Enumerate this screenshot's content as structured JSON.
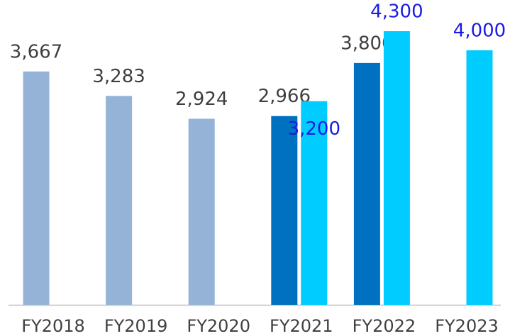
{
  "chart_data": {
    "type": "bar",
    "categories": [
      "FY2018",
      "FY2019",
      "FY2020",
      "FY2021",
      "FY2022",
      "FY2023"
    ],
    "series": [
      {
        "color": "#95b3d7",
        "label_color": "#404040",
        "values": [
          3667,
          3283,
          2924,
          null,
          null,
          null
        ],
        "value_labels": [
          "3,667",
          "3,283",
          "2,924",
          null,
          null,
          null
        ]
      },
      {
        "color": "#0070c0",
        "label_color": "#404040",
        "values": [
          null,
          null,
          null,
          2966,
          3800,
          null
        ],
        "value_labels": [
          null,
          null,
          null,
          "2,966",
          "3,800",
          null
        ]
      },
      {
        "color": "#00ccff",
        "label_color": "#1a1ae6",
        "values": [
          null,
          null,
          null,
          3200,
          4300,
          4000
        ],
        "value_labels": [
          null,
          null,
          null,
          "3,200",
          "4,300",
          "4,000"
        ]
      }
    ],
    "ylim": [
      0,
      4300
    ]
  }
}
